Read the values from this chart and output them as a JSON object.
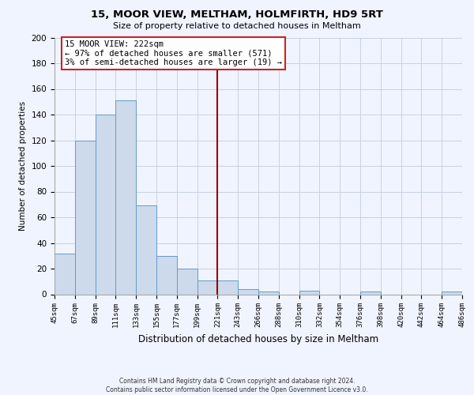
{
  "title": "15, MOOR VIEW, MELTHAM, HOLMFIRTH, HD9 5RT",
  "subtitle": "Size of property relative to detached houses in Meltham",
  "xlabel": "Distribution of detached houses by size in Meltham",
  "ylabel": "Number of detached properties",
  "bin_labels": [
    "45sqm",
    "67sqm",
    "89sqm",
    "111sqm",
    "133sqm",
    "155sqm",
    "177sqm",
    "199sqm",
    "221sqm",
    "243sqm",
    "266sqm",
    "288sqm",
    "310sqm",
    "332sqm",
    "354sqm",
    "376sqm",
    "398sqm",
    "420sqm",
    "442sqm",
    "464sqm",
    "486sqm"
  ],
  "bar_heights": [
    32,
    120,
    140,
    151,
    69,
    30,
    20,
    11,
    11,
    4,
    2,
    0,
    3,
    0,
    0,
    2,
    0,
    0,
    0,
    2
  ],
  "bar_color": "#ccdaeb",
  "bar_edge_color": "#6699cc",
  "vline_x_index": 8,
  "vline_color": "#990000",
  "ylim": [
    0,
    200
  ],
  "yticks": [
    0,
    20,
    40,
    60,
    80,
    100,
    120,
    140,
    160,
    180,
    200
  ],
  "annotation_title": "15 MOOR VIEW: 222sqm",
  "annotation_line1": "← 97% of detached houses are smaller (571)",
  "annotation_line2": "3% of semi-detached houses are larger (19) →",
  "annotation_box_facecolor": "#ffffff",
  "annotation_box_edgecolor": "#cc2222",
  "footer_line1": "Contains HM Land Registry data © Crown copyright and database right 2024.",
  "footer_line2": "Contains public sector information licensed under the Open Government Licence v3.0.",
  "background_color": "#f0f4ff",
  "grid_color": "#c8d0e0"
}
